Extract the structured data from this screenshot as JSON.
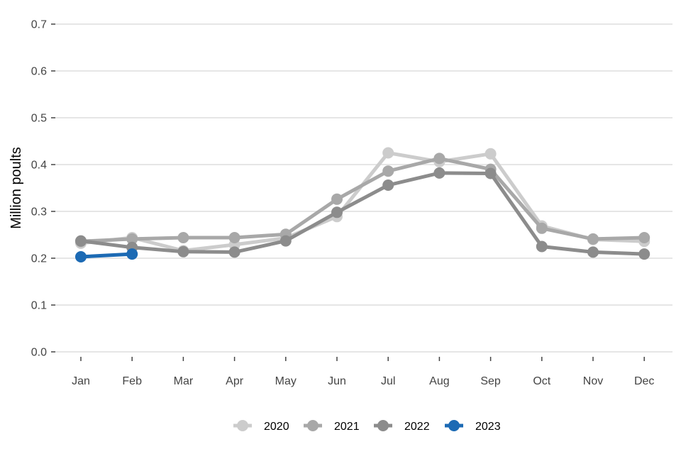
{
  "chart_data": {
    "type": "line",
    "title": "",
    "xlabel": "",
    "ylabel": "Million poults",
    "ylim": [
      0,
      0.7
    ],
    "yticks": [
      "0.0",
      "0.1",
      "0.2",
      "0.3",
      "0.4",
      "0.5",
      "0.6",
      "0.7"
    ],
    "categories": [
      "Jan",
      "Feb",
      "Mar",
      "Apr",
      "May",
      "Jun",
      "Jul",
      "Aug",
      "Sep",
      "Oct",
      "Nov",
      "Dec"
    ],
    "grid": true,
    "legend_position": "bottom",
    "series": [
      {
        "name": "2020",
        "color": "#cccccc",
        "values": [
          0.232,
          0.244,
          0.216,
          0.229,
          0.243,
          0.289,
          0.425,
          0.406,
          0.423,
          0.269,
          0.24,
          0.236
        ]
      },
      {
        "name": "2021",
        "color": "#a8a8a8",
        "values": [
          0.236,
          0.241,
          0.244,
          0.244,
          0.251,
          0.326,
          0.386,
          0.413,
          0.39,
          0.264,
          0.241,
          0.244
        ]
      },
      {
        "name": "2022",
        "color": "#8c8c8c",
        "values": [
          0.237,
          0.223,
          0.214,
          0.213,
          0.237,
          0.298,
          0.356,
          0.382,
          0.381,
          0.225,
          0.213,
          0.209
        ]
      },
      {
        "name": "2023",
        "color": "#1c6ab4",
        "values": [
          0.203,
          0.209,
          null,
          null,
          null,
          null,
          null,
          null,
          null,
          null,
          null,
          null
        ]
      }
    ]
  }
}
